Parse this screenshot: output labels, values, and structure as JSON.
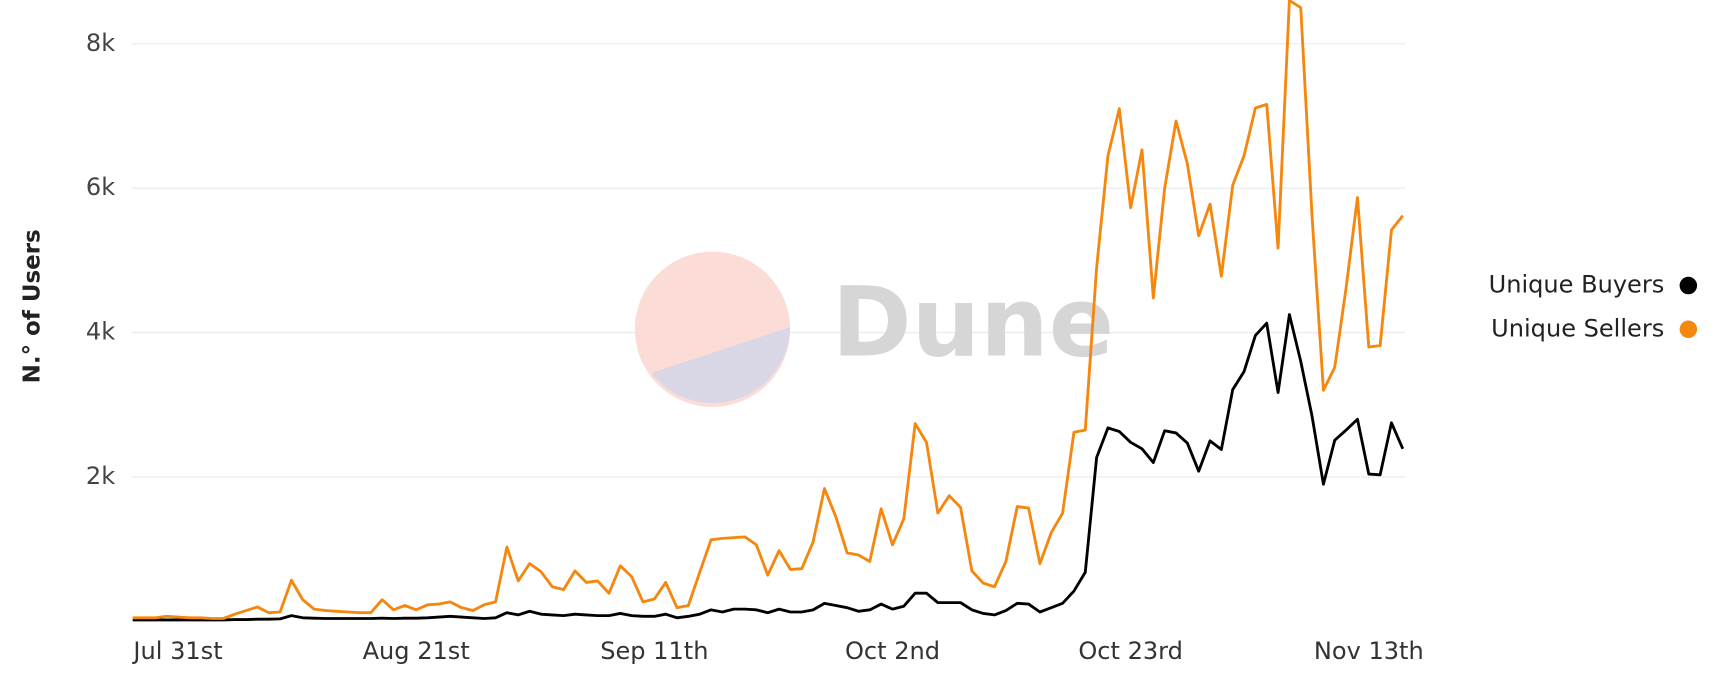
{
  "chart_data": {
    "type": "line",
    "y_label": "N.° of Users",
    "watermark": "Dune",
    "legend": "right",
    "grid": true,
    "ylim": [
      0,
      8600
    ],
    "yticks": [
      {
        "value": 2000,
        "label": "2k"
      },
      {
        "value": 4000,
        "label": "4k"
      },
      {
        "value": 6000,
        "label": "6k"
      },
      {
        "value": 8000,
        "label": "8k"
      }
    ],
    "categories": [
      null,
      null,
      null,
      null,
      "Jul 31st",
      null,
      null,
      null,
      null,
      null,
      null,
      null,
      null,
      null,
      null,
      null,
      null,
      null,
      null,
      null,
      null,
      null,
      null,
      null,
      null,
      "Aug 21st",
      null,
      null,
      null,
      null,
      null,
      null,
      null,
      null,
      null,
      null,
      null,
      null,
      null,
      null,
      null,
      null,
      null,
      null,
      null,
      null,
      "Sep 11th",
      null,
      null,
      null,
      null,
      null,
      null,
      null,
      null,
      null,
      null,
      null,
      null,
      null,
      null,
      null,
      null,
      null,
      null,
      null,
      null,
      "Oct 2nd",
      null,
      null,
      null,
      null,
      null,
      null,
      null,
      null,
      null,
      null,
      null,
      null,
      null,
      null,
      null,
      null,
      null,
      null,
      null,
      null,
      "Oct 23rd",
      null,
      null,
      null,
      null,
      null,
      null,
      null,
      null,
      null,
      null,
      null,
      null,
      null,
      null,
      null,
      null,
      null,
      null,
      null,
      null,
      "Nov 13th",
      null,
      null,
      null
    ],
    "series": [
      {
        "name": "Unique Buyers",
        "color": "#000000",
        "values": [
          20,
          20,
          20,
          20,
          20,
          20,
          20,
          20,
          20,
          25,
          25,
          30,
          30,
          35,
          80,
          50,
          45,
          40,
          40,
          40,
          40,
          40,
          45,
          40,
          45,
          45,
          50,
          60,
          70,
          60,
          50,
          40,
          50,
          120,
          90,
          140,
          100,
          90,
          80,
          100,
          90,
          80,
          80,
          110,
          80,
          70,
          70,
          100,
          50,
          70,
          100,
          160,
          130,
          170,
          170,
          160,
          120,
          170,
          130,
          130,
          160,
          250,
          220,
          190,
          140,
          160,
          240,
          170,
          210,
          390,
          390,
          260,
          260,
          260,
          160,
          110,
          90,
          150,
          250,
          240,
          130,
          190,
          250,
          420,
          680,
          2270,
          2680,
          2630,
          2480,
          2390,
          2200,
          2640,
          2610,
          2470,
          2080,
          2500,
          2380,
          3210,
          3460,
          3960,
          4130,
          3170,
          4250,
          3600,
          2840,
          1900,
          2510,
          2650,
          2800,
          2040,
          2030,
          2750,
          2390
        ]
      },
      {
        "name": "Unique Sellers",
        "color": "#f5870f",
        "values": [
          50,
          50,
          50,
          70,
          60,
          50,
          50,
          40,
          40,
          100,
          150,
          200,
          120,
          130,
          570,
          300,
          170,
          150,
          140,
          130,
          120,
          120,
          300,
          160,
          220,
          160,
          230,
          240,
          270,
          190,
          150,
          230,
          270,
          1030,
          560,
          800,
          690,
          480,
          440,
          700,
          540,
          560,
          390,
          770,
          620,
          270,
          310,
          540,
          190,
          220,
          680,
          1130,
          1150,
          1160,
          1170,
          1060,
          640,
          980,
          720,
          730,
          1100,
          1840,
          1450,
          950,
          920,
          830,
          1560,
          1060,
          1420,
          2740,
          2480,
          1500,
          1740,
          1580,
          700,
          530,
          480,
          830,
          1590,
          1570,
          800,
          1230,
          1500,
          2620,
          2650,
          4900,
          6450,
          7100,
          5730,
          6530,
          4480,
          6000,
          6930,
          6340,
          5340,
          5780,
          4780,
          6040,
          6450,
          7110,
          7160,
          5170,
          8600,
          8500,
          5600,
          3200,
          3520,
          4620,
          5870,
          3800,
          3820,
          5420,
          5620
        ]
      }
    ]
  }
}
